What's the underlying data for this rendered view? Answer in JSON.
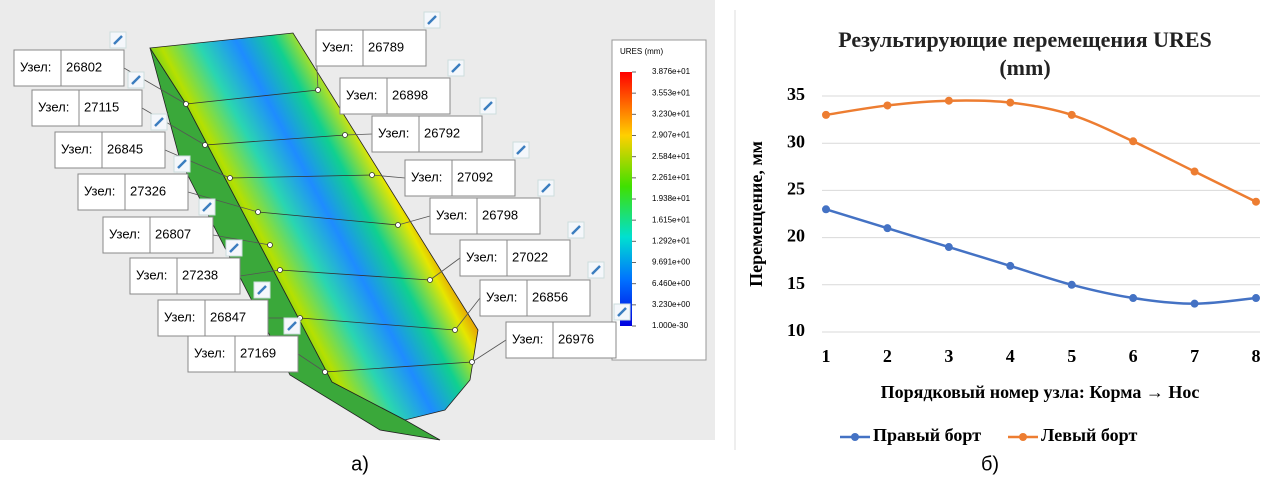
{
  "simulation": {
    "node_prefix": "Узел:",
    "left_nodes": [
      "26802",
      "27115",
      "26845",
      "27326",
      "26807",
      "27238",
      "26847",
      "27169"
    ],
    "right_nodes": [
      "26789",
      "26898",
      "26792",
      "27092",
      "26798",
      "27022",
      "26856",
      "26976"
    ],
    "legend": {
      "title": "URES (mm)",
      "ticks": [
        "3.876e+01",
        "3.553e+01",
        "3.230e+01",
        "2.907e+01",
        "2.584e+01",
        "2.261e+01",
        "1.938e+01",
        "1.615e+01",
        "1.292e+01",
        "9.691e+00",
        "6.460e+00",
        "3.230e+00",
        "1.000e-30"
      ]
    },
    "caption": "а)"
  },
  "chart_data": {
    "type": "line",
    "title": "Результирующие перемещения URES (mm)",
    "x_label": "Порядковый номер узла: Корма → Нос",
    "y_label": "Перемещение, мм",
    "x": [
      1,
      2,
      3,
      4,
      5,
      6,
      7,
      8
    ],
    "series": [
      {
        "name": "Правый борт",
        "color": "#4472c4",
        "values": [
          23,
          21,
          19,
          17,
          15,
          13.6,
          13,
          13.6
        ]
      },
      {
        "name": "Левый борт",
        "color": "#ed7d31",
        "values": [
          33,
          34,
          34.5,
          34.3,
          33,
          30.2,
          27,
          23.8
        ]
      }
    ],
    "xlim": [
      1,
      8
    ],
    "xticks": [
      1,
      2,
      3,
      4,
      5,
      6,
      7,
      8
    ],
    "ylim": [
      10,
      35
    ],
    "yticks": [
      10,
      15,
      20,
      25,
      30,
      35
    ],
    "grid": true,
    "legend": "bottom",
    "caption": "б)"
  }
}
